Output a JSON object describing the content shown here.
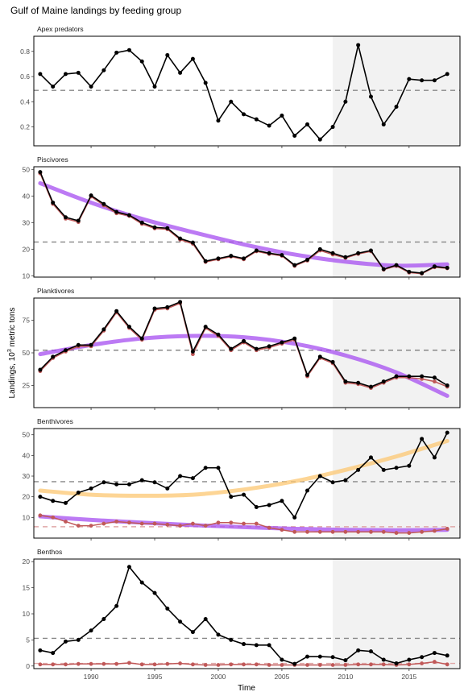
{
  "chart_data": {
    "type": "line",
    "title": "Gulf of Maine landings by feeding group",
    "xlabel": "Time",
    "ylabel": "Landings, 10^3 metric tons",
    "ylabel_prefix": "Landings, 10",
    "ylabel_sup": "3",
    "ylabel_suffix": " metric tons",
    "xlim": [
      1985.5,
      2019
    ],
    "xticks": [
      1990,
      1995,
      2000,
      2005,
      2010,
      2015
    ],
    "shaded_region": [
      2009,
      2019
    ],
    "colors": {
      "total": "#000000",
      "partial": "#c05858",
      "trend_down": "#a64df0",
      "trend_up": "#fcc771",
      "mean_line": "#888888",
      "mean_line_partial": "#e0a8a8",
      "shade": "#f2f2f2"
    },
    "panels": [
      {
        "name": "Apex predators",
        "ylim": [
          0.05,
          0.92
        ],
        "yticks": [
          0.2,
          0.4,
          0.6,
          0.8
        ],
        "mean": 0.49,
        "years": [
          1986,
          1987,
          1988,
          1989,
          1990,
          1991,
          1992,
          1993,
          1994,
          1995,
          1996,
          1997,
          1998,
          1999,
          2000,
          2001,
          2002,
          2003,
          2004,
          2005,
          2006,
          2007,
          2008,
          2009,
          2010,
          2011,
          2012,
          2013,
          2014,
          2015,
          2016,
          2017,
          2018
        ],
        "total": [
          0.62,
          0.52,
          0.62,
          0.63,
          0.52,
          0.65,
          0.79,
          0.81,
          0.72,
          0.52,
          0.77,
          0.63,
          0.74,
          0.55,
          0.25,
          0.4,
          0.3,
          0.26,
          0.21,
          0.29,
          0.13,
          0.22,
          0.1,
          0.2,
          0.4,
          0.85,
          0.44,
          0.22,
          0.36,
          0.58,
          0.57,
          0.57,
          0.62
        ]
      },
      {
        "name": "Piscivores",
        "ylim": [
          9.5,
          51
        ],
        "yticks": [
          10,
          20,
          30,
          40,
          50
        ],
        "mean": 22.7,
        "years": [
          1986,
          1987,
          1988,
          1989,
          1990,
          1991,
          1992,
          1993,
          1994,
          1995,
          1996,
          1997,
          1998,
          1999,
          2000,
          2001,
          2002,
          2003,
          2004,
          2005,
          2006,
          2007,
          2008,
          2009,
          2010,
          2011,
          2012,
          2013,
          2014,
          2015,
          2016,
          2017,
          2018
        ],
        "total": [
          49,
          37.5,
          32,
          30.7,
          40.2,
          37,
          34,
          32.8,
          30,
          28.2,
          27.9,
          24,
          22.5,
          15.5,
          16.5,
          17.5,
          16.5,
          19.5,
          18.5,
          17.8,
          14,
          16,
          20,
          18.5,
          17,
          18.5,
          19.5,
          12.5,
          14,
          11.5,
          11,
          13.5,
          13
        ],
        "partial": [
          48.5,
          37,
          31.5,
          30.2,
          39.8,
          36.5,
          33.5,
          32.5,
          29.5,
          27.8,
          27.5,
          23.6,
          22,
          15.2,
          16.2,
          17.2,
          16.2,
          19.2,
          18.2,
          17.5,
          13.7,
          15.7,
          19.5,
          18,
          16.7,
          18.2,
          19.2,
          12.3,
          13.7,
          11.2,
          10.8,
          13.2,
          12.8
        ],
        "trend": {
          "years": [
            1986,
            1990,
            1994,
            1998,
            2002,
            2006,
            2010,
            2014,
            2018
          ],
          "values": [
            44.8,
            37.5,
            31.4,
            26.4,
            21.8,
            18,
            15.3,
            13.8,
            14.3
          ],
          "color_key": "trend_down"
        }
      },
      {
        "name": "Planktivores",
        "ylim": [
          8,
          92
        ],
        "yticks": [
          25,
          50,
          75
        ],
        "mean": 52,
        "years": [
          1986,
          1987,
          1988,
          1989,
          1990,
          1991,
          1992,
          1993,
          1994,
          1995,
          1996,
          1997,
          1998,
          1999,
          2000,
          2001,
          2002,
          2003,
          2004,
          2005,
          2006,
          2007,
          2008,
          2009,
          2010,
          2011,
          2012,
          2013,
          2014,
          2015,
          2016,
          2017,
          2018
        ],
        "total": [
          37,
          47,
          52,
          56,
          56,
          68,
          82,
          70,
          61,
          84,
          85,
          89,
          51,
          70,
          64,
          53,
          59,
          53,
          55,
          58,
          61,
          33,
          47,
          43,
          28,
          27,
          24,
          28,
          32,
          32,
          32,
          31,
          25
        ],
        "partial": [
          36,
          46,
          51,
          55,
          55,
          67,
          81,
          69,
          60,
          83,
          84,
          88,
          49,
          69,
          63,
          52,
          58,
          52,
          54,
          57,
          60,
          32,
          46,
          42,
          27,
          26,
          23,
          27,
          31,
          31,
          30,
          28,
          24
        ],
        "trend": {
          "years": [
            1986,
            1990,
            1994,
            1998,
            2002,
            2006,
            2010,
            2014,
            2018
          ],
          "values": [
            49,
            56,
            61,
            63,
            62,
            57,
            48,
            35,
            17
          ],
          "color_key": "trend_down"
        }
      },
      {
        "name": "Benthivores",
        "ylim": [
          0,
          53
        ],
        "yticks": [
          10,
          20,
          30,
          40,
          50
        ],
        "mean": 27.3,
        "mean_partial": 5.5,
        "years": [
          1986,
          1987,
          1988,
          1989,
          1990,
          1991,
          1992,
          1993,
          1994,
          1995,
          1996,
          1997,
          1998,
          1999,
          2000,
          2001,
          2002,
          2003,
          2004,
          2005,
          2006,
          2007,
          2008,
          2009,
          2010,
          2011,
          2012,
          2013,
          2014,
          2015,
          2016,
          2017,
          2018
        ],
        "total": [
          20,
          18,
          17,
          22,
          24,
          27,
          26,
          26,
          28,
          27,
          24,
          30,
          29,
          34,
          34,
          20,
          21,
          15,
          16,
          18,
          10,
          23,
          30,
          27,
          28,
          33,
          39,
          33,
          34,
          35,
          48,
          39,
          51
        ],
        "partial": [
          11,
          10,
          8,
          6,
          6,
          7,
          8,
          7.5,
          7,
          7,
          6.5,
          6,
          7,
          6,
          7.5,
          7.5,
          7,
          7,
          5,
          4,
          3,
          3,
          3,
          3,
          3,
          3,
          3,
          3,
          2.5,
          2.5,
          3,
          3.5,
          4.5
        ],
        "trend": {
          "years": [
            1986,
            1990,
            1994,
            1998,
            2002,
            2006,
            2010,
            2014,
            2018
          ],
          "values": [
            23,
            21,
            20.5,
            21,
            23.5,
            27.5,
            33,
            39.5,
            47
          ],
          "color_key": "trend_up"
        },
        "trend_partial": {
          "years": [
            1986,
            1990,
            1994,
            1998,
            2002,
            2006,
            2010,
            2014,
            2018
          ],
          "values": [
            10.5,
            8.8,
            7.5,
            6.3,
            5.3,
            4.5,
            4,
            3.8,
            4
          ],
          "color_key": "trend_down"
        }
      },
      {
        "name": "Benthos",
        "ylim": [
          -0.5,
          20.5
        ],
        "yticks": [
          0,
          5,
          10,
          15,
          20
        ],
        "mean": 5.3,
        "mean_partial": 0.5,
        "years": [
          1986,
          1987,
          1988,
          1989,
          1990,
          1991,
          1992,
          1993,
          1994,
          1995,
          1996,
          1997,
          1998,
          1999,
          2000,
          2001,
          2002,
          2003,
          2004,
          2005,
          2006,
          2007,
          2008,
          2009,
          2010,
          2011,
          2012,
          2013,
          2014,
          2015,
          2016,
          2017,
          2018
        ],
        "total": [
          3,
          2.5,
          4.7,
          5,
          6.8,
          9,
          11.5,
          19,
          16,
          14,
          11,
          8.5,
          6.5,
          9,
          6,
          5,
          4.2,
          4,
          4,
          1.2,
          0.4,
          1.8,
          1.8,
          1.7,
          1.1,
          3,
          2.8,
          1.2,
          0.5,
          1.2,
          1.7,
          2.5,
          2
        ],
        "partial": [
          0.3,
          0.3,
          0.3,
          0.4,
          0.4,
          0.4,
          0.4,
          0.6,
          0.3,
          0.3,
          0.4,
          0.5,
          0.3,
          0.2,
          0.2,
          0.3,
          0.3,
          0.3,
          0.2,
          0.2,
          0.2,
          0.2,
          0.2,
          0.2,
          0.2,
          0.3,
          0.3,
          0.3,
          0.2,
          0.3,
          0.5,
          0.8,
          0.3
        ]
      }
    ]
  }
}
